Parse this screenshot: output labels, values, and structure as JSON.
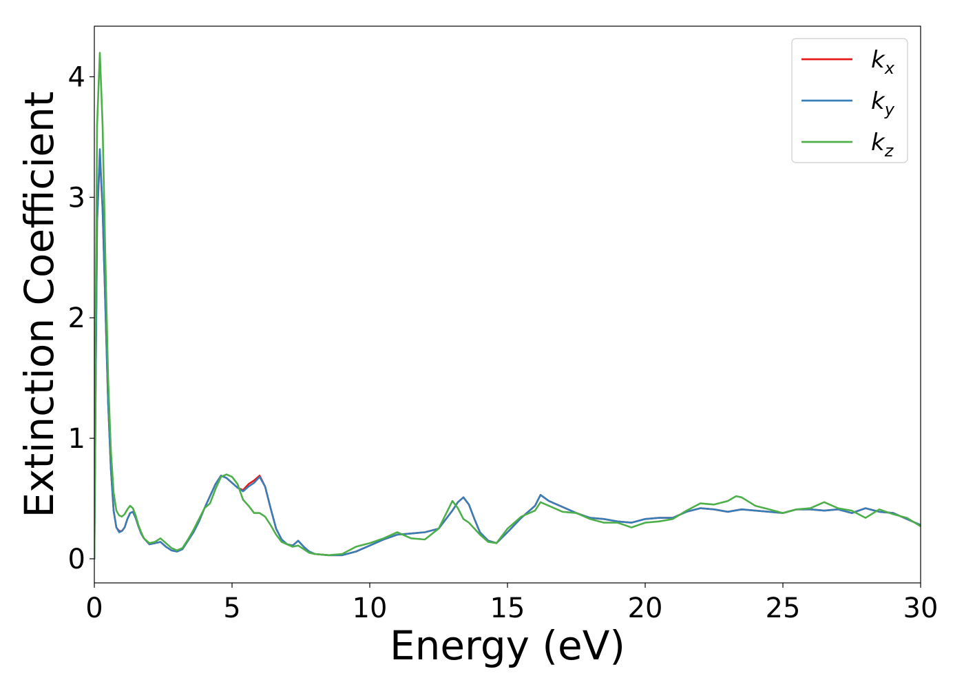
{
  "chart_data": {
    "type": "line",
    "title": "",
    "xlabel": "Energy (eV)",
    "ylabel": "Extinction Coefficient",
    "xlim": [
      0,
      30
    ],
    "ylim": [
      -0.2,
      4.42
    ],
    "xticks": [
      0,
      5,
      10,
      15,
      20,
      25,
      30
    ],
    "xtick_labels": [
      "0",
      "5",
      "10",
      "15",
      "20",
      "25",
      "30"
    ],
    "yticks": [
      0,
      1,
      2,
      3,
      4
    ],
    "ytick_labels": [
      "0",
      "1",
      "2",
      "3",
      "4"
    ],
    "grid": false,
    "legend_position": "top-right",
    "series": [
      {
        "name": "kx",
        "base": "k",
        "sub": "x",
        "color": "#e41a1c",
        "x": [
          0,
          0.05,
          0.1,
          0.2,
          0.3,
          0.4,
          0.5,
          0.6,
          0.7,
          0.8,
          0.9,
          1.0,
          1.1,
          1.2,
          1.3,
          1.4,
          1.5,
          1.6,
          1.7,
          1.8,
          2.0,
          2.2,
          2.4,
          2.6,
          2.8,
          3.0,
          3.2,
          3.4,
          3.6,
          3.8,
          4.0,
          4.2,
          4.4,
          4.6,
          4.8,
          5.0,
          5.2,
          5.4,
          5.6,
          5.8,
          6.0,
          6.2,
          6.4,
          6.6,
          6.8,
          7.0,
          7.2,
          7.4,
          7.6,
          7.8,
          8.0,
          8.5,
          9.0,
          9.5,
          10.0,
          10.5,
          11.0,
          11.5,
          12.0,
          12.5,
          13.0,
          13.2,
          13.4,
          13.6,
          13.8,
          14.0,
          14.3,
          14.6,
          15.0,
          15.5,
          16.0,
          16.2,
          16.5,
          17.0,
          17.5,
          18.0,
          18.5,
          19.0,
          19.5,
          20.0,
          20.5,
          21.0,
          21.5,
          22.0,
          22.5,
          23.0,
          23.5,
          24.0,
          24.5,
          25.0,
          25.5,
          26.0,
          26.5,
          27.0,
          27.5,
          28.0,
          28.5,
          29.0,
          29.5,
          30.0
        ],
        "y": [
          0.0,
          1.5,
          2.8,
          3.35,
          2.9,
          2.1,
          1.3,
          0.75,
          0.4,
          0.26,
          0.23,
          0.23,
          0.26,
          0.33,
          0.38,
          0.39,
          0.34,
          0.27,
          0.21,
          0.17,
          0.12,
          0.13,
          0.14,
          0.1,
          0.07,
          0.06,
          0.08,
          0.15,
          0.22,
          0.31,
          0.42,
          0.52,
          0.62,
          0.69,
          0.67,
          0.63,
          0.59,
          0.57,
          0.62,
          0.65,
          0.69,
          0.6,
          0.42,
          0.25,
          0.16,
          0.12,
          0.11,
          0.15,
          0.1,
          0.06,
          0.04,
          0.03,
          0.03,
          0.06,
          0.11,
          0.16,
          0.2,
          0.21,
          0.22,
          0.25,
          0.4,
          0.47,
          0.51,
          0.45,
          0.33,
          0.22,
          0.15,
          0.13,
          0.22,
          0.34,
          0.44,
          0.53,
          0.48,
          0.43,
          0.38,
          0.34,
          0.33,
          0.31,
          0.3,
          0.33,
          0.34,
          0.34,
          0.39,
          0.42,
          0.41,
          0.39,
          0.41,
          0.4,
          0.39,
          0.38,
          0.41,
          0.41,
          0.4,
          0.41,
          0.38,
          0.42,
          0.39,
          0.38,
          0.33,
          0.28
        ]
      },
      {
        "name": "ky",
        "base": "k",
        "sub": "y",
        "color": "#377eb8",
        "x": [
          0,
          0.05,
          0.1,
          0.2,
          0.3,
          0.4,
          0.5,
          0.6,
          0.7,
          0.8,
          0.9,
          1.0,
          1.1,
          1.2,
          1.3,
          1.4,
          1.5,
          1.6,
          1.7,
          1.8,
          2.0,
          2.2,
          2.4,
          2.6,
          2.8,
          3.0,
          3.2,
          3.4,
          3.6,
          3.8,
          4.0,
          4.2,
          4.4,
          4.6,
          4.8,
          5.0,
          5.2,
          5.4,
          5.6,
          5.8,
          6.0,
          6.2,
          6.4,
          6.6,
          6.8,
          7.0,
          7.2,
          7.4,
          7.6,
          7.8,
          8.0,
          8.5,
          9.0,
          9.5,
          10.0,
          10.5,
          11.0,
          11.5,
          12.0,
          12.5,
          13.0,
          13.2,
          13.4,
          13.6,
          13.8,
          14.0,
          14.3,
          14.6,
          15.0,
          15.5,
          16.0,
          16.2,
          16.5,
          17.0,
          17.5,
          18.0,
          18.5,
          19.0,
          19.5,
          20.0,
          20.5,
          21.0,
          21.5,
          22.0,
          22.5,
          23.0,
          23.5,
          24.0,
          24.5,
          25.0,
          25.5,
          26.0,
          26.5,
          27.0,
          27.5,
          28.0,
          28.5,
          29.0,
          29.5,
          30.0
        ],
        "y": [
          0.0,
          1.5,
          2.8,
          3.4,
          2.9,
          2.1,
          1.3,
          0.75,
          0.4,
          0.26,
          0.22,
          0.23,
          0.26,
          0.33,
          0.38,
          0.39,
          0.34,
          0.27,
          0.21,
          0.17,
          0.12,
          0.13,
          0.14,
          0.1,
          0.07,
          0.06,
          0.08,
          0.15,
          0.22,
          0.31,
          0.42,
          0.52,
          0.62,
          0.69,
          0.67,
          0.63,
          0.59,
          0.56,
          0.6,
          0.63,
          0.68,
          0.6,
          0.42,
          0.25,
          0.16,
          0.12,
          0.11,
          0.15,
          0.1,
          0.06,
          0.04,
          0.03,
          0.03,
          0.06,
          0.11,
          0.16,
          0.2,
          0.21,
          0.22,
          0.25,
          0.4,
          0.47,
          0.51,
          0.45,
          0.33,
          0.22,
          0.15,
          0.13,
          0.22,
          0.34,
          0.44,
          0.53,
          0.48,
          0.43,
          0.38,
          0.34,
          0.33,
          0.31,
          0.3,
          0.33,
          0.34,
          0.34,
          0.39,
          0.42,
          0.41,
          0.39,
          0.41,
          0.4,
          0.39,
          0.38,
          0.41,
          0.41,
          0.4,
          0.41,
          0.38,
          0.42,
          0.39,
          0.38,
          0.33,
          0.28
        ]
      },
      {
        "name": "kz",
        "base": "k",
        "sub": "z",
        "color": "#4daf4a",
        "x": [
          0,
          0.05,
          0.1,
          0.2,
          0.3,
          0.4,
          0.5,
          0.6,
          0.7,
          0.8,
          0.9,
          1.0,
          1.1,
          1.2,
          1.3,
          1.4,
          1.5,
          1.6,
          1.7,
          1.8,
          2.0,
          2.2,
          2.4,
          2.6,
          2.8,
          3.0,
          3.2,
          3.4,
          3.6,
          3.8,
          4.0,
          4.2,
          4.4,
          4.6,
          4.8,
          5.0,
          5.2,
          5.4,
          5.6,
          5.8,
          6.0,
          6.2,
          6.4,
          6.6,
          6.8,
          7.0,
          7.2,
          7.4,
          7.6,
          7.8,
          8.0,
          8.5,
          9.0,
          9.5,
          10.0,
          10.5,
          11.0,
          11.5,
          12.0,
          12.5,
          13.0,
          13.2,
          13.4,
          13.6,
          13.8,
          14.0,
          14.3,
          14.6,
          15.0,
          15.5,
          16.0,
          16.2,
          16.5,
          17.0,
          17.5,
          18.0,
          18.5,
          19.0,
          19.5,
          20.0,
          20.5,
          21.0,
          21.5,
          22.0,
          22.5,
          23.0,
          23.3,
          23.5,
          24.0,
          24.5,
          25.0,
          25.5,
          26.0,
          26.5,
          27.0,
          27.5,
          28.0,
          28.5,
          29.0,
          29.5,
          30.0
        ],
        "y": [
          0.0,
          2.0,
          3.6,
          4.2,
          3.6,
          2.5,
          1.5,
          0.9,
          0.55,
          0.4,
          0.36,
          0.35,
          0.37,
          0.41,
          0.44,
          0.42,
          0.36,
          0.28,
          0.22,
          0.17,
          0.13,
          0.14,
          0.17,
          0.13,
          0.09,
          0.07,
          0.09,
          0.16,
          0.24,
          0.33,
          0.42,
          0.46,
          0.58,
          0.68,
          0.7,
          0.68,
          0.62,
          0.49,
          0.44,
          0.38,
          0.38,
          0.35,
          0.28,
          0.2,
          0.14,
          0.12,
          0.1,
          0.11,
          0.08,
          0.05,
          0.04,
          0.03,
          0.04,
          0.1,
          0.13,
          0.17,
          0.22,
          0.17,
          0.16,
          0.25,
          0.48,
          0.42,
          0.33,
          0.3,
          0.25,
          0.2,
          0.14,
          0.13,
          0.25,
          0.35,
          0.4,
          0.47,
          0.44,
          0.39,
          0.38,
          0.33,
          0.3,
          0.3,
          0.26,
          0.3,
          0.31,
          0.33,
          0.4,
          0.46,
          0.45,
          0.48,
          0.52,
          0.51,
          0.44,
          0.41,
          0.38,
          0.41,
          0.42,
          0.47,
          0.42,
          0.4,
          0.34,
          0.41,
          0.37,
          0.34,
          0.27
        ]
      }
    ]
  }
}
